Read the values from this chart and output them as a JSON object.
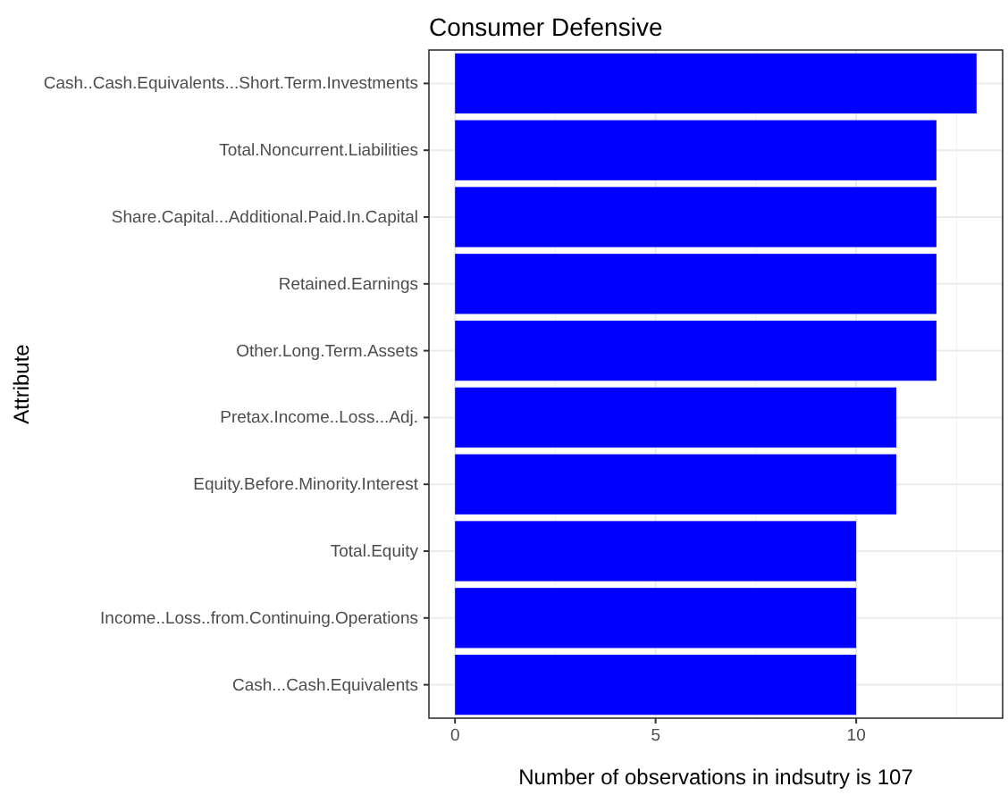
{
  "chart_data": {
    "type": "bar",
    "orientation": "horizontal",
    "title": "Consumer Defensive",
    "xlabel": "Number of observations in indsutry is 107",
    "ylabel": "Attribute",
    "categories": [
      "Cash..Cash.Equivalents...Short.Term.Investments",
      "Total.Noncurrent.Liabilities",
      "Share.Capital...Additional.Paid.In.Capital",
      "Retained.Earnings",
      "Other.Long.Term.Assets",
      "Pretax.Income..Loss...Adj.",
      "Equity.Before.Minority.Interest",
      "Total.Equity",
      "Income..Loss..from.Continuing.Operations",
      "Cash...Cash.Equivalents"
    ],
    "values": [
      13,
      12,
      12,
      12,
      12,
      11,
      11,
      10,
      10,
      10
    ],
    "color": "#0000ff",
    "xlim": [
      -0.65,
      13.65
    ],
    "xticks": [
      0,
      5,
      10
    ],
    "grid": true
  }
}
